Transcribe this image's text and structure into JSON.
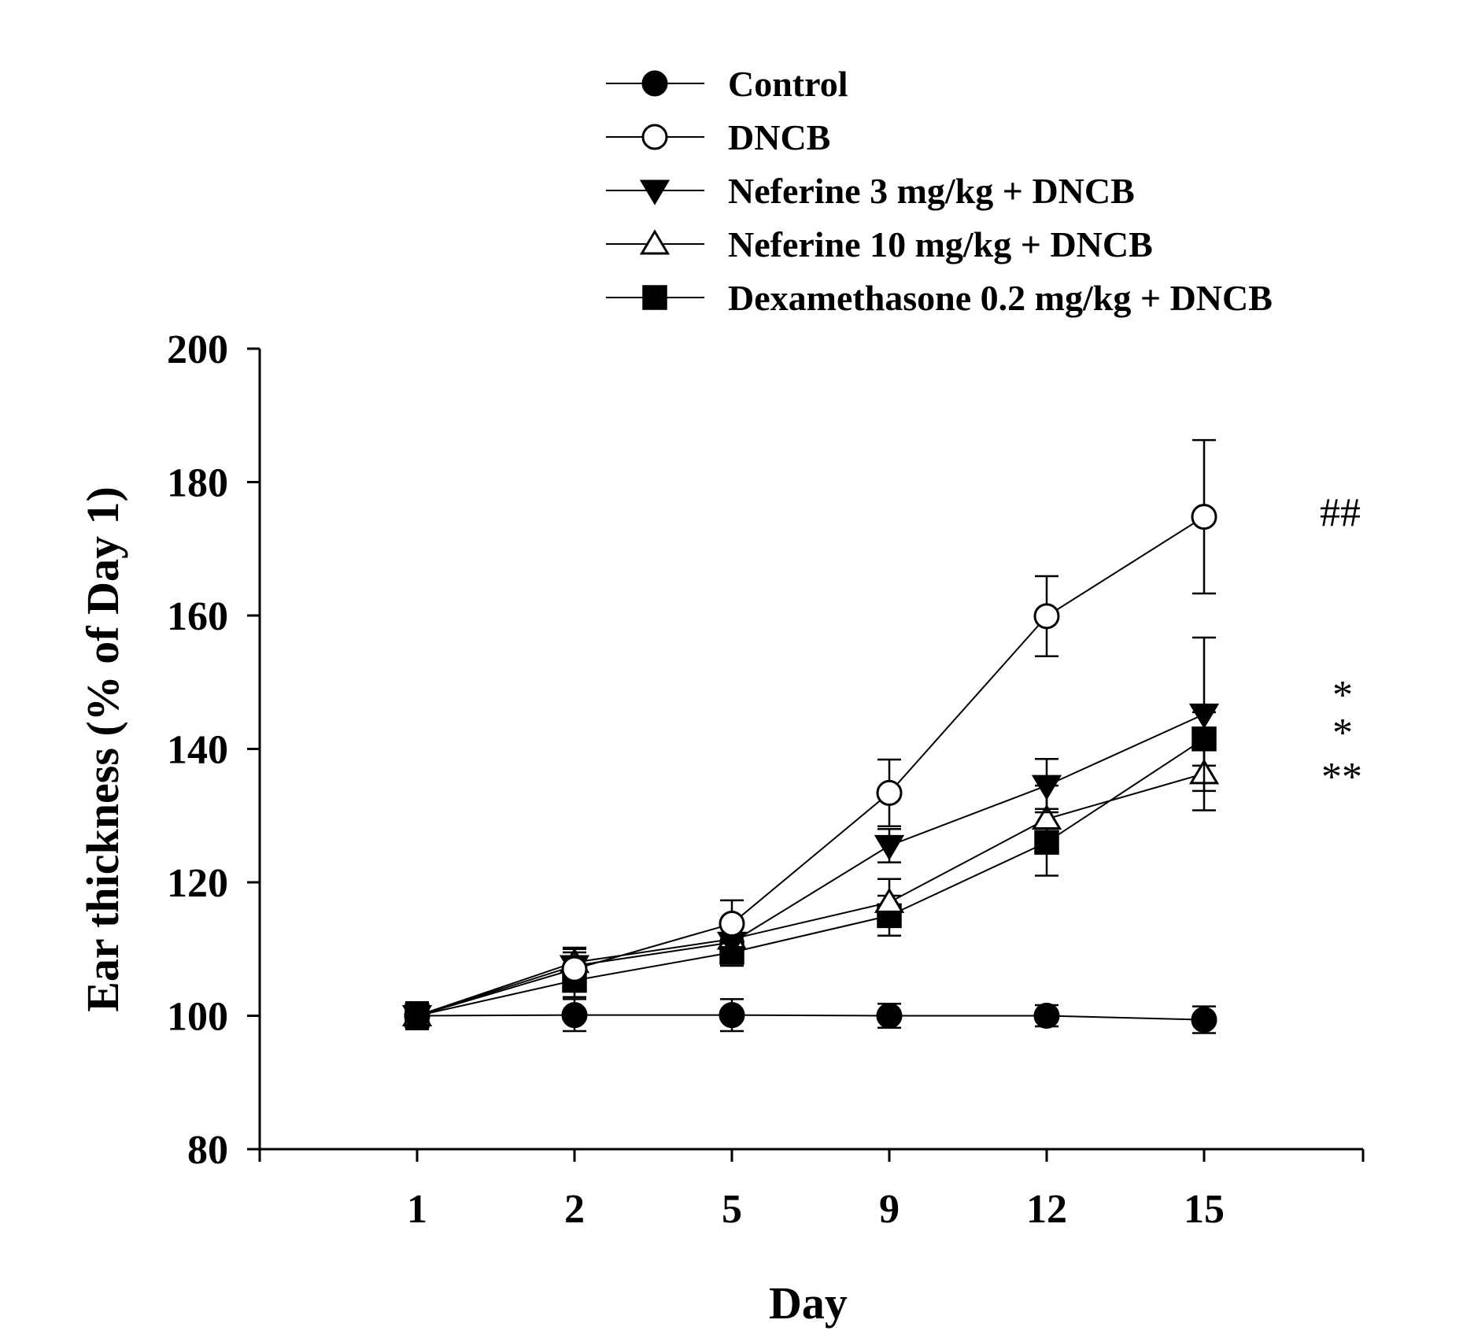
{
  "chart_data": {
    "type": "line",
    "xlabel": "Day",
    "ylabel": "Ear thickness (% of Day 1)",
    "ylim": [
      80,
      200
    ],
    "yticks": [
      80,
      100,
      120,
      140,
      160,
      180,
      200
    ],
    "categories": [
      "1",
      "2",
      "5",
      "9",
      "12",
      "15"
    ],
    "legend_position": "top",
    "series": [
      {
        "name": "Control",
        "marker": "circle-filled",
        "values": [
          100,
          100.1,
          100.1,
          100,
          100,
          99.4
        ],
        "errors": [
          2,
          2.4,
          2.4,
          1.8,
          1.6,
          2.0
        ]
      },
      {
        "name": "DNCB",
        "marker": "circle-open",
        "values": [
          100,
          107,
          113.8,
          133.4,
          159.9,
          174.8
        ],
        "errors": [
          2,
          2.5,
          3.5,
          5,
          6,
          11.5
        ]
      },
      {
        "name": "Neferine 3 mg/kg + DNCB",
        "marker": "triangle-down-filled",
        "values": [
          100,
          107.5,
          111,
          125.5,
          134.5,
          145.2
        ],
        "errors": [
          2,
          2.5,
          2.5,
          2.5,
          4,
          11.5
        ]
      },
      {
        "name": "Neferine 10 mg/kg + DNCB",
        "marker": "triangle-up-open",
        "values": [
          100,
          108,
          111.5,
          117,
          129.5,
          136.3
        ],
        "errors": [
          2,
          2.2,
          2.5,
          3.5,
          5,
          5.5
        ]
      },
      {
        "name": "Dexamethasone 0.2 mg/kg + DNCB",
        "marker": "square-filled",
        "values": [
          100,
          105.3,
          109.5,
          115,
          126,
          141.5
        ],
        "errors": [
          2,
          2.5,
          2,
          3,
          5,
          4
        ]
      }
    ],
    "annotations": [
      "##",
      "*",
      "*",
      "**"
    ]
  }
}
